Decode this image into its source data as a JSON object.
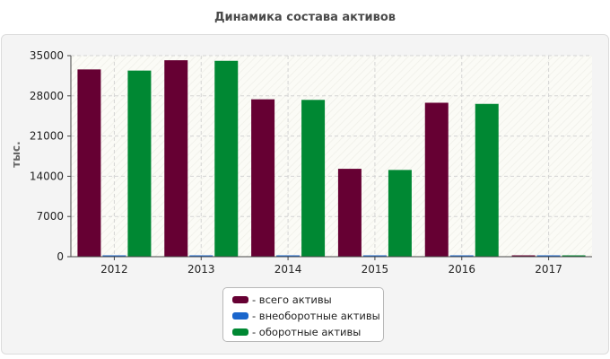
{
  "chart_data": {
    "type": "bar",
    "title": "Динамика состава активов",
    "ylabel": "тыс.",
    "xlabel": "",
    "categories": [
      "2012",
      "2013",
      "2014",
      "2015",
      "2016",
      "2017"
    ],
    "series": [
      {
        "name": "- всего активы",
        "color": "#660033",
        "values": [
          32600,
          34200,
          27400,
          15300,
          26800,
          150
        ]
      },
      {
        "name": "- внеоборотные активы",
        "color": "#1a66cc",
        "values": [
          150,
          150,
          150,
          150,
          150,
          150
        ]
      },
      {
        "name": "- оборотные активы",
        "color": "#008833",
        "values": [
          32400,
          34100,
          27300,
          15100,
          26600,
          150
        ]
      }
    ],
    "yticks": [
      "0",
      "7000",
      "14000",
      "21000",
      "28000",
      "35000"
    ],
    "ylim": [
      0,
      35000
    ],
    "grid": true,
    "legend_position": "bottom-center"
  }
}
